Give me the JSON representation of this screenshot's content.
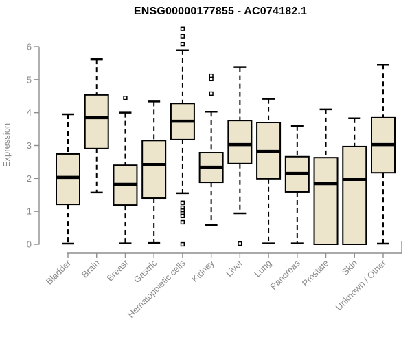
{
  "chart_data": {
    "type": "boxplot",
    "title": "ENSG00000177855 - AC074182.1",
    "ylabel": "Expression",
    "xlabel": "",
    "yticks": [
      0,
      1,
      2,
      3,
      4,
      5,
      6
    ],
    "ylim": [
      0,
      6.6
    ],
    "grid": false,
    "legend": null,
    "categories": [
      "Bladder",
      "Brain",
      "Breast",
      "Gastric",
      "Hematopoietic cells",
      "Kidney",
      "Liver",
      "Lung",
      "Pancreas",
      "Prostate",
      "Skin",
      "Unknown / Other"
    ],
    "boxes": [
      {
        "label": "Bladder",
        "whisker_low": 0.02,
        "q1": 1.21,
        "median": 2.03,
        "q3": 2.74,
        "whisker_high": 3.95,
        "outliers": []
      },
      {
        "label": "Brain",
        "whisker_low": 1.57,
        "q1": 2.91,
        "median": 3.85,
        "q3": 4.54,
        "whisker_high": 5.62,
        "outliers": []
      },
      {
        "label": "Breast",
        "whisker_low": 0.03,
        "q1": 1.19,
        "median": 1.82,
        "q3": 2.4,
        "whisker_high": 4.0,
        "outliers": [
          4.45
        ]
      },
      {
        "label": "Gastric",
        "whisker_low": 0.04,
        "q1": 1.4,
        "median": 2.42,
        "q3": 3.15,
        "whisker_high": 4.34,
        "outliers": []
      },
      {
        "label": "Hematopoietic cells",
        "whisker_low": 1.55,
        "q1": 3.18,
        "median": 3.74,
        "q3": 4.28,
        "whisker_high": 5.9,
        "outliers": [
          6.55,
          6.32,
          6.08,
          1.26,
          1.11,
          1.02,
          0.94,
          0.86,
          0.67,
          0.0
        ]
      },
      {
        "label": "Kidney",
        "whisker_low": 0.59,
        "q1": 1.88,
        "median": 2.34,
        "q3": 2.78,
        "whisker_high": 4.03,
        "outliers": [
          5.12,
          5.02,
          4.58
        ]
      },
      {
        "label": "Liver",
        "whisker_low": 0.94,
        "q1": 2.45,
        "median": 3.03,
        "q3": 3.76,
        "whisker_high": 5.38,
        "outliers": [
          0.02
        ]
      },
      {
        "label": "Lung",
        "whisker_low": 0.03,
        "q1": 1.99,
        "median": 2.82,
        "q3": 3.7,
        "whisker_high": 4.42,
        "outliers": []
      },
      {
        "label": "Pancreas",
        "whisker_low": 0.03,
        "q1": 1.59,
        "median": 2.15,
        "q3": 2.66,
        "whisker_high": 3.6,
        "outliers": []
      },
      {
        "label": "Prostate",
        "whisker_low": 0.0,
        "q1": 0.0,
        "median": 1.84,
        "q3": 2.63,
        "whisker_high": 4.1,
        "outliers": []
      },
      {
        "label": "Skin",
        "whisker_low": 0.0,
        "q1": 0.0,
        "median": 1.97,
        "q3": 2.97,
        "whisker_high": 3.83,
        "outliers": []
      },
      {
        "label": "Unknown / Other",
        "whisker_low": 0.02,
        "q1": 2.17,
        "median": 3.03,
        "q3": 3.85,
        "whisker_high": 5.45,
        "outliers": []
      }
    ],
    "colors": {
      "box_fill": "#ece5cc",
      "box_stroke": "#000000",
      "median": "#000000",
      "whisker": "#000000",
      "outlier_stroke": "#000000",
      "axis": "#8e8e8e",
      "tick_label": "#8a8a8a",
      "title": "#000000",
      "background": "#ffffff"
    }
  }
}
